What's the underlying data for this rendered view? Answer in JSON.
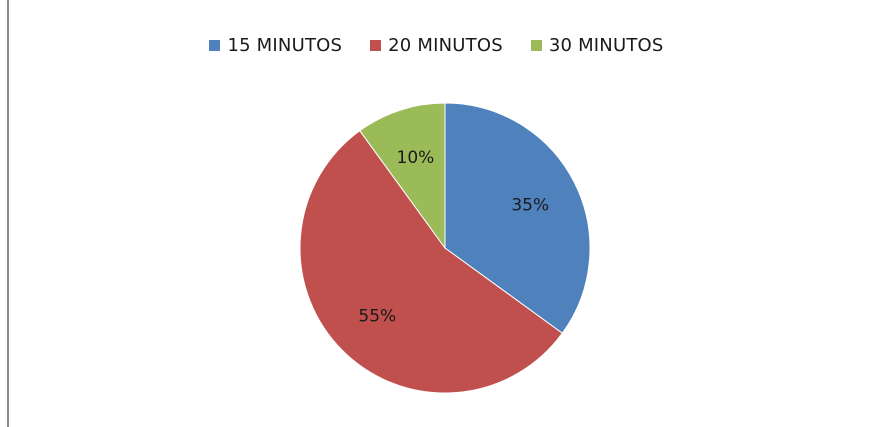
{
  "chart_data": {
    "type": "pie",
    "title": "",
    "categories": [
      "15 MINUTOS",
      "20 MINUTOS",
      "30 MINUTOS"
    ],
    "values": [
      35,
      55,
      10
    ],
    "labels": [
      "35%",
      "55%",
      "10%"
    ],
    "colors": [
      "#4f81bd",
      "#c0504d",
      "#9bbb59"
    ],
    "legend_position": "top"
  },
  "legend": {
    "items": [
      {
        "label": "15 MINUTOS",
        "color": "#4f81bd"
      },
      {
        "label": "20 MINUTOS",
        "color": "#c0504d"
      },
      {
        "label": "30 MINUTOS",
        "color": "#9bbb59"
      }
    ]
  }
}
